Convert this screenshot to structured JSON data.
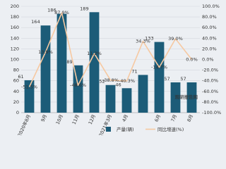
{
  "chart_data": {
    "type": "bar_line",
    "categories": [
      "2020年8月",
      "9月",
      "10月",
      "11月",
      "12月",
      "2021年3月",
      "4月",
      null,
      "6月",
      "7月",
      "8月"
    ],
    "series": [
      {
        "name": "产量(辆)",
        "type": "bar",
        "color": "#1c5c78",
        "values": [
          61,
          164,
          186,
          89,
          189,
          52,
          46,
          71,
          133,
          57,
          57
        ]
      },
      {
        "name": "同比增速(%)",
        "type": "line",
        "axis": "y2",
        "color": "#f6c9a2",
        "values": [
          -51.5,
          13.9,
          87.9,
          -48.6,
          11.2,
          -38.8,
          -40.3,
          34.3,
          -14.7,
          39.0,
          0.0
        ],
        "value_labels": [
          "-51.5%",
          "13.9%",
          "87.9%",
          "-48.6%",
          "11.2%",
          "-38.8%",
          "-40.3%",
          "34.3%",
          "-14.7%",
          "39.0%",
          "0.0%"
        ]
      }
    ],
    "ylim": [
      0,
      200
    ],
    "yticks": [
      0,
      20,
      40,
      60,
      80,
      100,
      120,
      140,
      160,
      180,
      200
    ],
    "y2lim": [
      -100,
      100
    ],
    "y2ticks": [
      {
        "value": -100,
        "label": "-100.0%"
      },
      {
        "value": -80,
        "label": "-80.0%"
      },
      {
        "value": -60,
        "label": "-60.0%"
      },
      {
        "value": -40,
        "label": "-40.0%"
      },
      {
        "value": -20,
        "label": "-20.0%"
      },
      {
        "value": 0,
        "label": "0.0%"
      },
      {
        "value": 20,
        "label": "20.0%"
      },
      {
        "value": 40,
        "label": "40.0%"
      },
      {
        "value": 60,
        "label": "60.0%"
      },
      {
        "value": 80,
        "label": "80.0%"
      },
      {
        "value": 100,
        "label": "100.0%"
      }
    ],
    "grid": true,
    "watermark": "观研报告网"
  }
}
